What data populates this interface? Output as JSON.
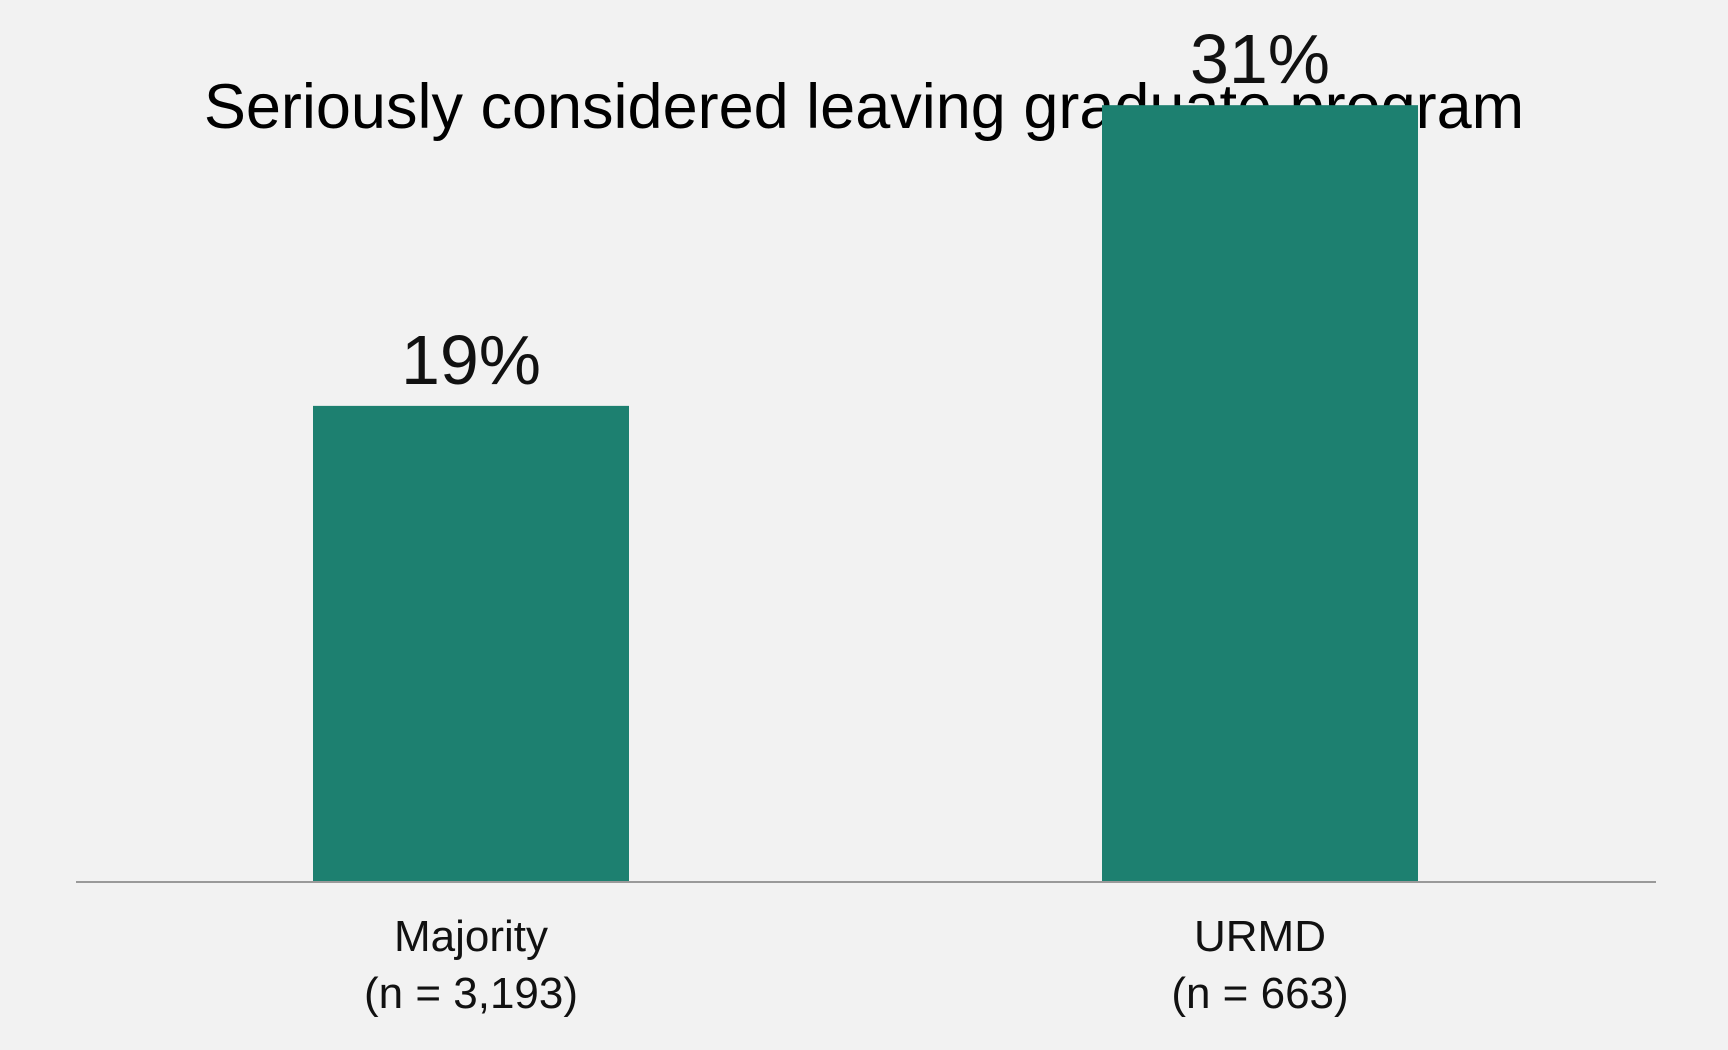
{
  "chart_data": {
    "type": "bar",
    "title": "Seriously considered leaving graduate program",
    "xlabel": "",
    "ylabel": "",
    "categories": [
      "Majority",
      "URMD"
    ],
    "category_sublabels": [
      "(n = 3,193)",
      "(n = 663)"
    ],
    "values": [
      19,
      31
    ],
    "data_labels": [
      "19%",
      "31%"
    ],
    "unit": "%",
    "ylim": [
      0,
      34
    ],
    "grid": false,
    "legend": "none",
    "colors": {
      "bar": "#1d8070",
      "baseline": "#9a9a9a",
      "background": "#f2f2f2"
    }
  }
}
